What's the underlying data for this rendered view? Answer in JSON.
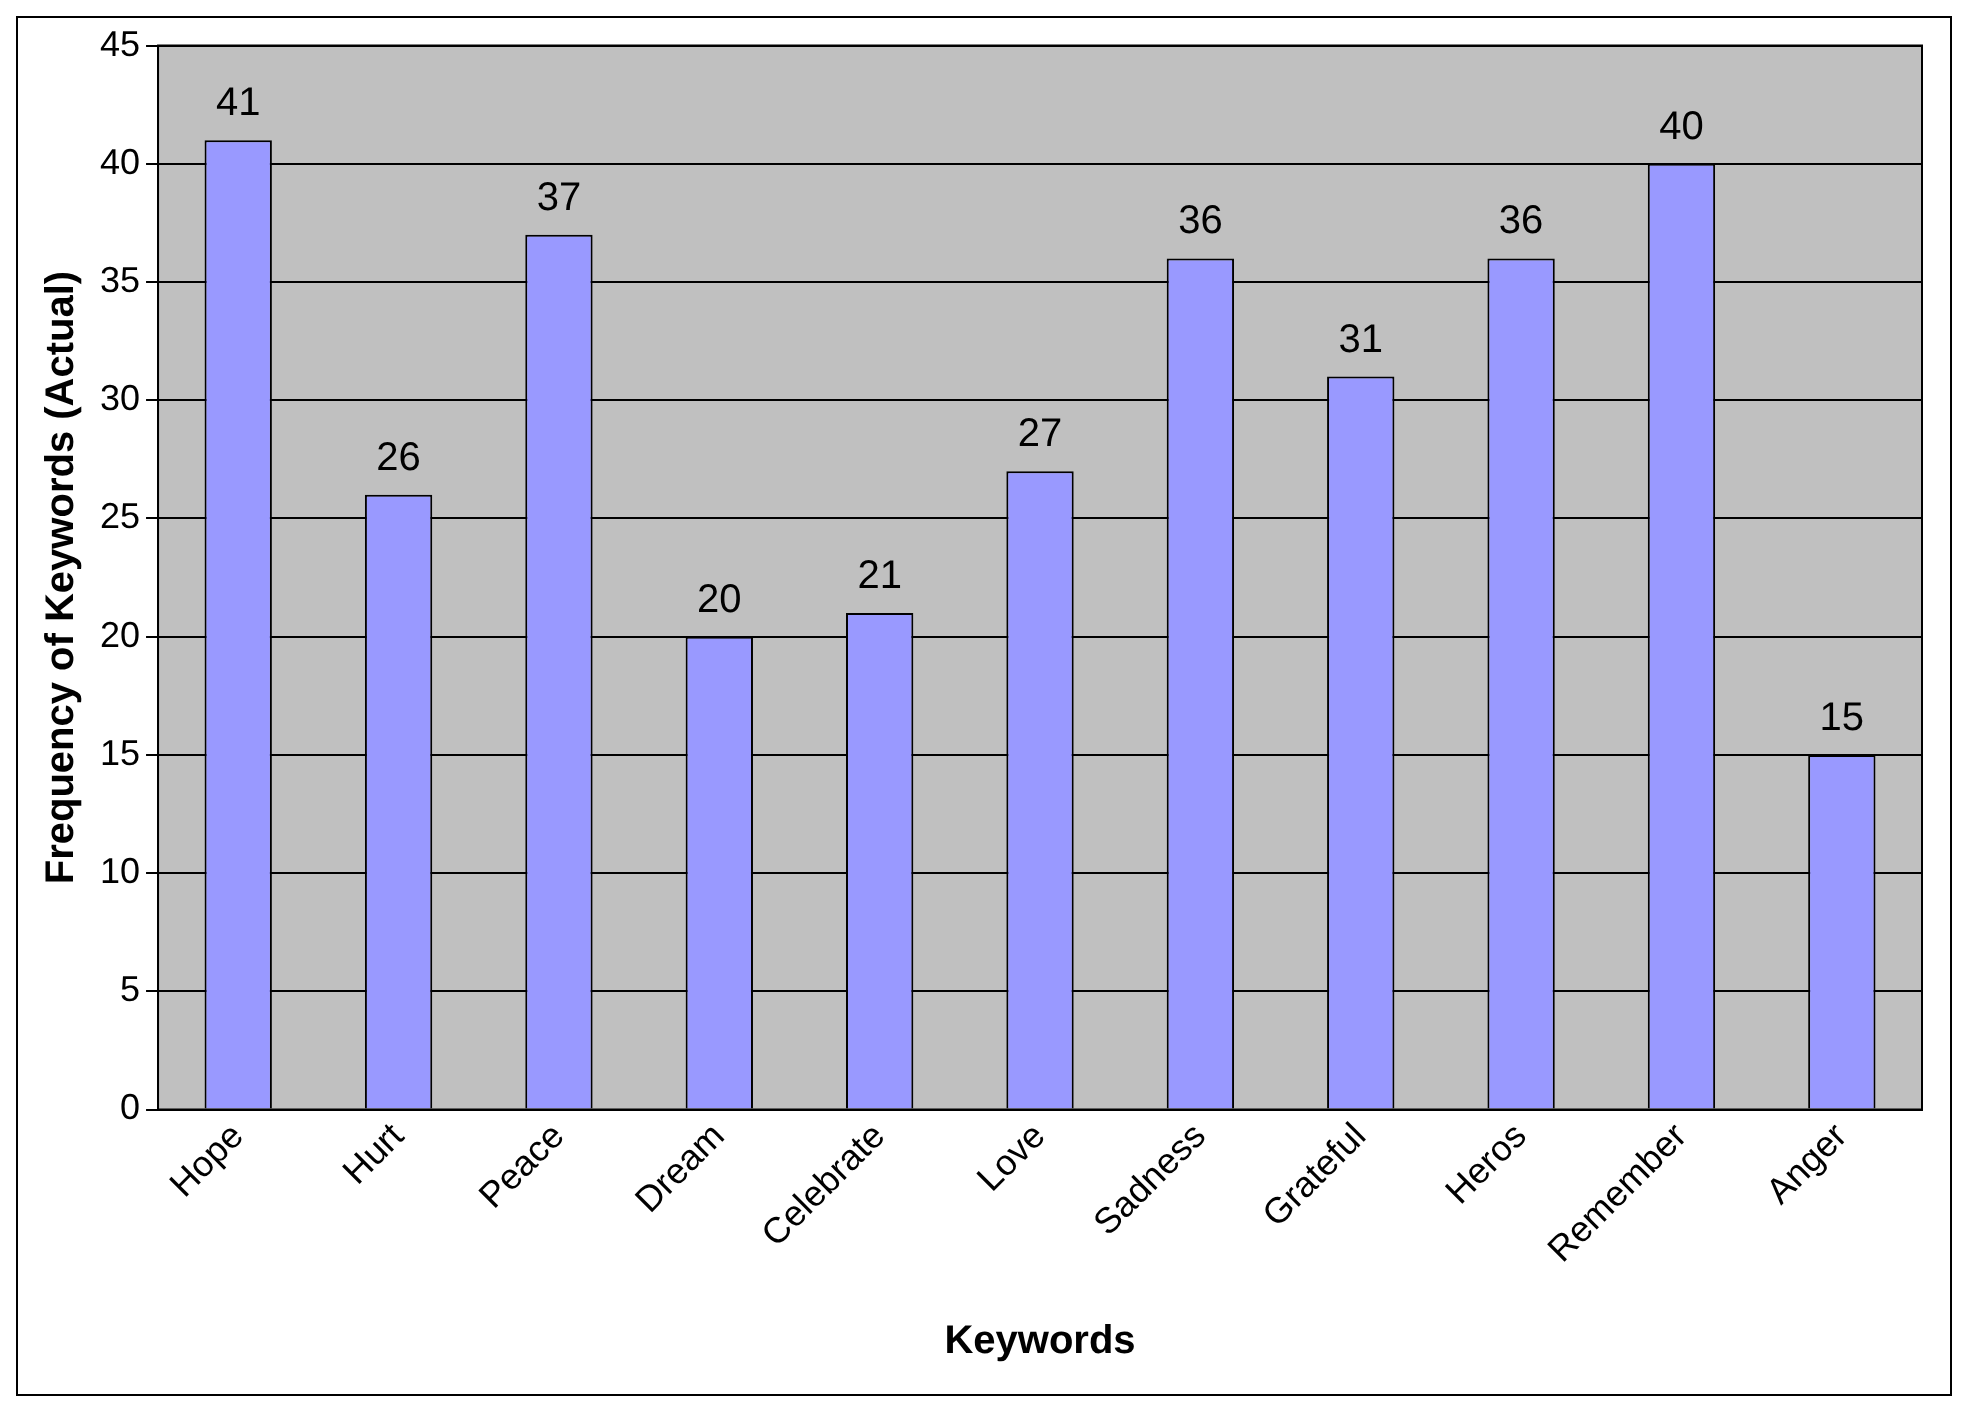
{
  "chart_data": {
    "type": "bar",
    "xlabel": "Keywords",
    "ylabel": "Frequency of Keywords (Actual)",
    "categories": [
      "Hope",
      "Hurt",
      "Peace",
      "Dream",
      "Celebrate",
      "Love",
      "Sadness",
      "Grateful",
      "Heros",
      "Remember",
      "Anger"
    ],
    "values": [
      41,
      26,
      37,
      20,
      21,
      27,
      36,
      31,
      36,
      40,
      15
    ],
    "color": "#9999ff",
    "ylim": [
      0,
      45
    ],
    "yticks": [
      0,
      5,
      10,
      15,
      20,
      25,
      30,
      35,
      40,
      45
    ],
    "grid": "y",
    "data_labels": true,
    "legend": false
  }
}
